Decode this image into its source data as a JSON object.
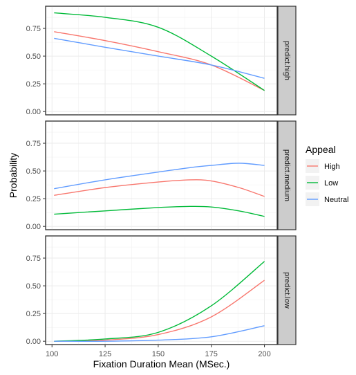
{
  "chart_data": {
    "type": "line",
    "xlabel": "Fixation Duration Mean (MSec.)",
    "ylabel": "Probability",
    "xlim": [
      97,
      206
    ],
    "ylim": [
      -0.03,
      0.95
    ],
    "x_ticks": [
      100,
      125,
      150,
      175,
      200
    ],
    "x_tick_labels": [
      "100",
      "125",
      "150",
      "175",
      "200"
    ],
    "y_ticks": [
      0,
      0.25,
      0.5,
      0.75
    ],
    "y_tick_labels": [
      "0.00",
      "0.25",
      "0.50",
      "0.75"
    ],
    "grid": true,
    "legend": {
      "title": "Appeal",
      "position": "right",
      "entries": [
        "High",
        "Low",
        "Neutral"
      ]
    },
    "colors": {
      "High": "#f8766d",
      "Low": "#00ba38",
      "Neutral": "#619cff"
    },
    "facets": [
      {
        "label": "predict.high",
        "x": [
          101,
          125,
          150,
          175,
          200
        ],
        "series": [
          {
            "name": "High",
            "values": [
              0.72,
              0.64,
              0.54,
              0.42,
              0.19
            ]
          },
          {
            "name": "Low",
            "values": [
              0.89,
              0.85,
              0.76,
              0.5,
              0.19
            ]
          },
          {
            "name": "Neutral",
            "values": [
              0.66,
              0.58,
              0.5,
              0.42,
              0.3
            ]
          }
        ]
      },
      {
        "label": "predict.medium",
        "x": [
          101,
          125,
          150,
          165,
          175,
          188,
          200
        ],
        "series": [
          {
            "name": "High",
            "values": [
              0.28,
              0.35,
              0.4,
              0.42,
              0.41,
              0.35,
              0.27
            ]
          },
          {
            "name": "Low",
            "values": [
              0.11,
              0.14,
              0.17,
              0.18,
              0.175,
              0.14,
              0.09
            ]
          },
          {
            "name": "Neutral",
            "values": [
              0.34,
              0.42,
              0.49,
              0.53,
              0.55,
              0.57,
              0.55
            ]
          }
        ]
      },
      {
        "label": "predict.low",
        "x": [
          101,
          125,
          150,
          175,
          200
        ],
        "series": [
          {
            "name": "High",
            "values": [
              0.0,
              0.01,
              0.06,
              0.22,
              0.55
            ]
          },
          {
            "name": "Low",
            "values": [
              0.0,
              0.02,
              0.08,
              0.32,
              0.72
            ]
          },
          {
            "name": "Neutral",
            "values": [
              0.0,
              0.0,
              0.01,
              0.04,
              0.14
            ]
          }
        ]
      }
    ]
  }
}
